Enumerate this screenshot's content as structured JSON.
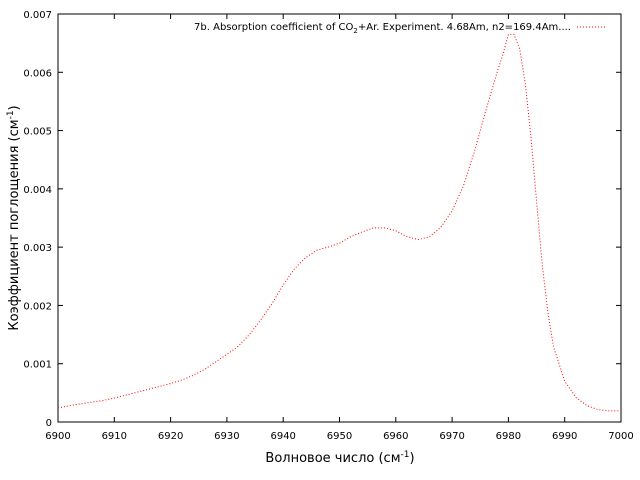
{
  "chart_data": {
    "type": "line",
    "xlabel": "Волновое число (см",
    "xlabel_sup": "-1",
    "xlabel_end": ")",
    "ylabel": "Коэффициент поглощения (см",
    "ylabel_sup": "-1",
    "ylabel_end": ")",
    "xlim": [
      6900,
      7000
    ],
    "ylim": [
      0,
      0.007
    ],
    "xticks": [
      6900,
      6910,
      6920,
      6930,
      6940,
      6950,
      6960,
      6970,
      6980,
      6990,
      7000
    ],
    "yticks": [
      0,
      0.001,
      0.002,
      0.003,
      0.004,
      0.005,
      0.006,
      0.007
    ],
    "xtick_labels": [
      "6900",
      "6910",
      "6920",
      "6930",
      "6940",
      "6950",
      "6960",
      "6970",
      "6980",
      "6990",
      "7000"
    ],
    "ytick_labels": [
      "0",
      "0.001",
      "0.002",
      "0.003",
      "0.004",
      "0.005",
      "0.006",
      "0.007"
    ],
    "grid": false,
    "legend_position": "top-right",
    "series": [
      {
        "name": "7b. Absorption coefficient of CO2+Ar. Experiment. 4.68Am, n2=169.4Am....",
        "legend_prefix": "7b. Absorption coefficient of CO",
        "legend_sub": "2",
        "legend_suffix": "+Ar. Experiment. 4.68Am, n2=169.4Am....",
        "color": "#ff0000",
        "line_style": "dotted",
        "x": [
          6900,
          6902,
          6904,
          6906,
          6908,
          6910,
          6912,
          6914,
          6916,
          6918,
          6920,
          6922,
          6924,
          6926,
          6928,
          6930,
          6932,
          6934,
          6936,
          6938,
          6940,
          6942,
          6944,
          6946,
          6948,
          6950,
          6952,
          6954,
          6956,
          6958,
          6960,
          6962,
          6964,
          6966,
          6968,
          6970,
          6972,
          6974,
          6976,
          6978,
          6979,
          6980,
          6981,
          6982,
          6983,
          6984,
          6985,
          6986,
          6987,
          6988,
          6990,
          6992,
          6994,
          6996,
          6998,
          7000
        ],
        "y": [
          0.00024,
          0.00028,
          0.00031,
          0.00034,
          0.00037,
          0.00041,
          0.00046,
          0.00051,
          0.00056,
          0.00061,
          0.00066,
          0.00072,
          0.0008,
          0.0009,
          0.00103,
          0.00116,
          0.0013,
          0.0015,
          0.00175,
          0.00203,
          0.00235,
          0.00263,
          0.00282,
          0.00295,
          0.003,
          0.00307,
          0.00318,
          0.00326,
          0.00333,
          0.00333,
          0.00328,
          0.00318,
          0.00313,
          0.00318,
          0.00334,
          0.00362,
          0.00405,
          0.00465,
          0.00535,
          0.006,
          0.0063,
          0.00665,
          0.00665,
          0.0064,
          0.0058,
          0.0049,
          0.0038,
          0.0027,
          0.0019,
          0.0013,
          0.0007,
          0.00042,
          0.00028,
          0.00021,
          0.00019,
          0.00019
        ]
      }
    ]
  }
}
